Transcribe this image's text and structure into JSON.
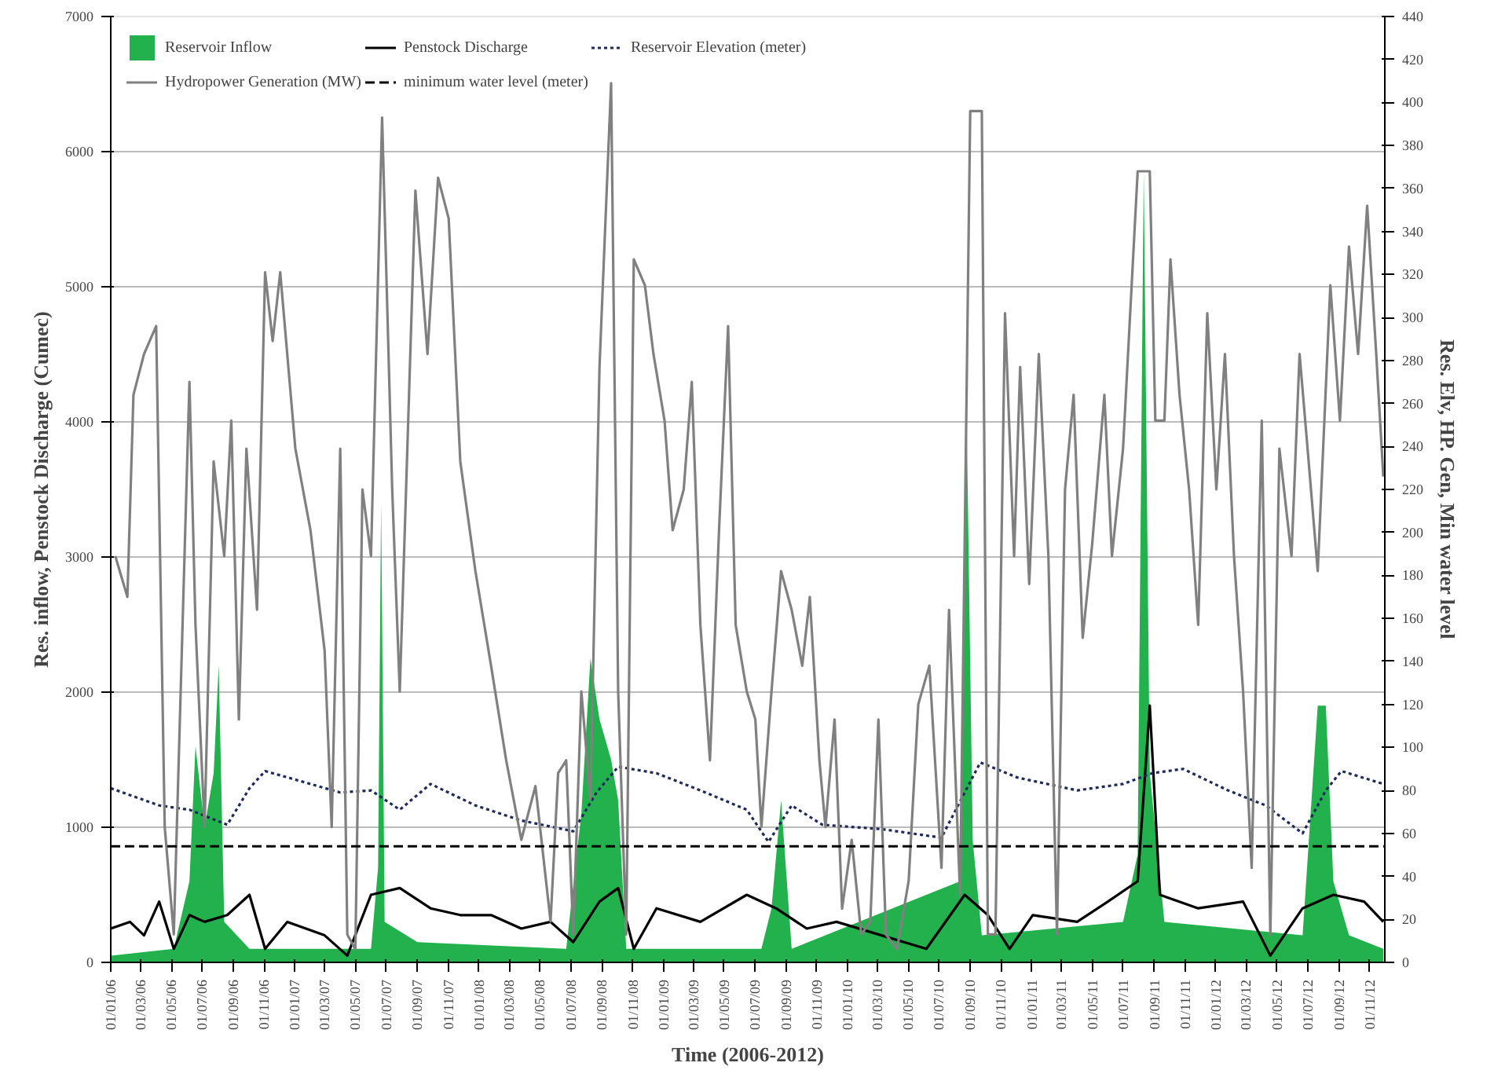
{
  "chart_data": {
    "type": "line",
    "xlabel": "Time (2006-2012)",
    "ylabel": "Res. inflow, Penstock Discharge (Cumec)",
    "y2label": "Res. Elv, HP. Gen, Min water level",
    "xlim": [
      "2006-01-01",
      "2012-12-01"
    ],
    "ylim": [
      0,
      7000
    ],
    "yticks": [
      0,
      1000,
      2000,
      3000,
      4000,
      5000,
      6000,
      7000
    ],
    "y2lim": [
      0,
      440
    ],
    "y2ticks": [
      0,
      20,
      40,
      60,
      80,
      100,
      120,
      140,
      160,
      180,
      200,
      220,
      240,
      260,
      280,
      300,
      320,
      340,
      360,
      380,
      400,
      420,
      440
    ],
    "xticks": [
      {
        "value": "2006-01-01",
        "label": "01/01/06"
      },
      {
        "value": "2006-03-01",
        "label": "01/03/06"
      },
      {
        "value": "2006-05-01",
        "label": "01/05/06"
      },
      {
        "value": "2006-07-01",
        "label": "01/07/06"
      },
      {
        "value": "2006-09-01",
        "label": "01/09/06"
      },
      {
        "value": "2006-11-01",
        "label": "01/11/06"
      },
      {
        "value": "2007-01-01",
        "label": "01/01/07"
      },
      {
        "value": "2007-03-01",
        "label": "01/03/07"
      },
      {
        "value": "2007-05-01",
        "label": "01/05/07"
      },
      {
        "value": "2007-07-01",
        "label": "01/07/07"
      },
      {
        "value": "2007-09-01",
        "label": "01/09/07"
      },
      {
        "value": "2007-11-01",
        "label": "01/11/07"
      },
      {
        "value": "2008-01-01",
        "label": "01/01/08"
      },
      {
        "value": "2008-03-01",
        "label": "01/03/08"
      },
      {
        "value": "2008-05-01",
        "label": "01/05/08"
      },
      {
        "value": "2008-07-01",
        "label": "01/07/08"
      },
      {
        "value": "2008-09-01",
        "label": "01/09/08"
      },
      {
        "value": "2008-11-01",
        "label": "01/11/08"
      },
      {
        "value": "2009-01-01",
        "label": "01/01/09"
      },
      {
        "value": "2009-03-01",
        "label": "01/03/09"
      },
      {
        "value": "2009-05-01",
        "label": "01/05/09"
      },
      {
        "value": "2009-07-01",
        "label": "01/07/09"
      },
      {
        "value": "2009-09-01",
        "label": "01/09/09"
      },
      {
        "value": "2009-11-01",
        "label": "01/11/09"
      },
      {
        "value": "2010-01-01",
        "label": "01/01/10"
      },
      {
        "value": "2010-03-01",
        "label": "01/03/10"
      },
      {
        "value": "2010-05-01",
        "label": "01/05/10"
      },
      {
        "value": "2010-07-01",
        "label": "01/07/10"
      },
      {
        "value": "2010-09-01",
        "label": "01/09/10"
      },
      {
        "value": "2010-11-01",
        "label": "01/11/10"
      },
      {
        "value": "2011-01-01",
        "label": "01/01/11"
      },
      {
        "value": "2011-03-01",
        "label": "01/03/11"
      },
      {
        "value": "2011-05-01",
        "label": "01/05/11"
      },
      {
        "value": "2011-07-01",
        "label": "01/07/11"
      },
      {
        "value": "2011-09-01",
        "label": "01/09/11"
      },
      {
        "value": "2011-11-01",
        "label": "01/11/11"
      },
      {
        "value": "2012-01-01",
        "label": "01/01/12"
      },
      {
        "value": "2012-03-01",
        "label": "01/03/12"
      },
      {
        "value": "2012-05-01",
        "label": "01/05/12"
      },
      {
        "value": "2012-07-01",
        "label": "01/07/12"
      },
      {
        "value": "2012-09-01",
        "label": "01/09/12"
      },
      {
        "value": "2012-11-01",
        "label": "01/11/12"
      }
    ],
    "grid": "y",
    "legend": "top left",
    "series": [
      {
        "name": "Reservoir Inflow",
        "type": "area",
        "color": "#22b14c",
        "x": [
          "2006-01-01",
          "2006-05-06",
          "2006-06-06",
          "2006-06-18",
          "2006-07-06",
          "2006-07-24",
          "2006-08-03",
          "2006-08-14",
          "2006-10-03",
          "2007-06-01",
          "2007-06-15",
          "2007-06-21",
          "2007-06-28",
          "2007-09-01",
          "2008-06-22",
          "2008-07-22",
          "2008-08-09",
          "2008-08-27",
          "2008-09-19",
          "2008-10-03",
          "2008-10-19",
          "2009-07-14",
          "2009-08-03",
          "2009-08-22",
          "2009-09-12",
          "2010-08-12",
          "2010-08-24",
          "2010-09-06",
          "2010-09-24",
          "2011-07-01",
          "2011-07-30",
          "2011-08-11",
          "2011-08-23",
          "2011-09-21",
          "2012-06-21",
          "2012-07-21",
          "2012-08-06",
          "2012-08-21",
          "2012-09-21",
          "2012-11-28"
        ],
        "values": [
          50,
          100,
          600,
          1600,
          1000,
          1400,
          2200,
          300,
          100,
          100,
          700,
          3400,
          300,
          150,
          100,
          1100,
          2250,
          1800,
          1500,
          1200,
          100,
          100,
          400,
          1200,
          100,
          600,
          4300,
          900,
          200,
          300,
          800,
          5850,
          1400,
          300,
          200,
          1900,
          1900,
          600,
          200,
          100
        ]
      },
      {
        "name": "Penstock Discharge",
        "color": "#000000",
        "line_style": "solid",
        "x": [
          "2006-01-01",
          "2006-02-08",
          "2006-03-08",
          "2006-04-07",
          "2006-05-06",
          "2006-06-06",
          "2006-07-06",
          "2006-08-20",
          "2006-10-03",
          "2006-11-03",
          "2006-12-17",
          "2007-03-01",
          "2007-04-15",
          "2007-06-01",
          "2007-07-28",
          "2007-09-27",
          "2007-11-25",
          "2008-01-25",
          "2008-03-25",
          "2008-05-22",
          "2008-07-06",
          "2008-08-27",
          "2008-10-03",
          "2008-11-03",
          "2008-12-18",
          "2009-03-15",
          "2009-06-15",
          "2009-08-12",
          "2009-10-12",
          "2009-12-10",
          "2010-03-09",
          "2010-06-06",
          "2010-08-21",
          "2010-10-06",
          "2010-11-18",
          "2011-01-03",
          "2011-04-01",
          "2011-06-01",
          "2011-07-30",
          "2011-08-23",
          "2011-09-12",
          "2011-11-27",
          "2012-02-24",
          "2012-04-18",
          "2012-06-21",
          "2012-08-21",
          "2012-10-21",
          "2012-11-28"
        ],
        "values": [
          250,
          300,
          200,
          450,
          100,
          350,
          300,
          350,
          500,
          100,
          300,
          200,
          50,
          500,
          550,
          400,
          350,
          350,
          250,
          300,
          150,
          450,
          550,
          100,
          400,
          300,
          500,
          400,
          250,
          300,
          200,
          100,
          500,
          350,
          100,
          350,
          300,
          450,
          600,
          1900,
          500,
          400,
          450,
          50,
          400,
          500,
          450,
          300
        ]
      },
      {
        "name": "Reservoir Elevation (meter)",
        "axis": "y2",
        "color": "#1f2a5a",
        "line_style": "dotted",
        "x": [
          "2006-01-01",
          "2006-04-07",
          "2006-06-06",
          "2006-08-20",
          "2006-10-03",
          "2006-11-03",
          "2007-01-02",
          "2007-04-01",
          "2007-06-01",
          "2007-07-28",
          "2007-09-27",
          "2007-12-25",
          "2008-03-25",
          "2008-07-06",
          "2008-08-21",
          "2008-10-03",
          "2008-12-18",
          "2009-03-15",
          "2009-06-15",
          "2009-07-28",
          "2009-09-12",
          "2009-11-12",
          "2010-03-09",
          "2010-07-06",
          "2010-08-21",
          "2010-09-21",
          "2010-12-03",
          "2011-04-01",
          "2011-07-01",
          "2011-08-28",
          "2011-10-28",
          "2012-01-25",
          "2012-04-09",
          "2012-06-21",
          "2012-08-06",
          "2012-09-06",
          "2012-11-28"
        ],
        "values": [
          81,
          73,
          71,
          64,
          81,
          89,
          85,
          79,
          80,
          71,
          83,
          73,
          66,
          61,
          79,
          91,
          88,
          80,
          71,
          56,
          73,
          64,
          62,
          58,
          79,
          93,
          86,
          80,
          83,
          88,
          90,
          80,
          73,
          60,
          80,
          89,
          83
        ]
      },
      {
        "name": "Hydropower Generation (MW)",
        "axis": "y2",
        "color": "#808080",
        "line_style": "solid",
        "x": [
          "2006-01-10",
          "2006-02-03",
          "2006-02-15",
          "2006-03-08",
          "2006-04-01",
          "2006-04-18",
          "2006-05-06",
          "2006-06-06",
          "2006-06-18",
          "2006-07-06",
          "2006-07-24",
          "2006-08-14",
          "2006-08-28",
          "2006-09-12",
          "2006-09-27",
          "2006-10-18",
          "2006-11-03",
          "2006-11-18",
          "2006-12-03",
          "2007-01-02",
          "2007-02-01",
          "2007-03-01",
          "2007-03-15",
          "2007-04-01",
          "2007-04-15",
          "2007-05-01",
          "2007-05-15",
          "2007-06-01",
          "2007-06-23",
          "2007-07-13",
          "2007-07-28",
          "2007-08-28",
          "2007-09-21",
          "2007-10-12",
          "2007-11-02",
          "2007-11-25",
          "2007-12-25",
          "2008-01-25",
          "2008-02-24",
          "2008-03-25",
          "2008-04-22",
          "2008-05-22",
          "2008-06-06",
          "2008-06-22",
          "2008-07-06",
          "2008-07-22",
          "2008-08-09",
          "2008-08-27",
          "2008-09-19",
          "2008-10-03",
          "2008-10-19",
          "2008-11-03",
          "2008-11-25",
          "2008-12-12",
          "2009-01-03",
          "2009-01-19",
          "2009-02-10",
          "2009-02-26",
          "2009-03-15",
          "2009-04-03",
          "2009-04-21",
          "2009-05-09",
          "2009-05-24",
          "2009-06-15",
          "2009-07-02",
          "2009-07-14",
          "2009-08-03",
          "2009-08-22",
          "2009-09-12",
          "2009-10-03",
          "2009-10-18",
          "2009-11-06",
          "2009-11-18",
          "2009-12-06",
          "2009-12-21",
          "2010-01-09",
          "2010-01-28",
          "2010-02-15",
          "2010-03-03",
          "2010-03-18",
          "2010-04-09",
          "2010-05-02",
          "2010-05-21",
          "2010-06-12",
          "2010-07-06",
          "2010-07-21",
          "2010-08-12",
          "2010-09-01",
          "2010-09-24",
          "2010-10-06",
          "2010-10-21",
          "2010-11-09",
          "2010-11-27",
          "2010-12-09",
          "2010-12-27",
          "2011-01-15",
          "2011-02-03",
          "2011-02-20",
          "2011-03-08",
          "2011-03-25",
          "2011-04-12",
          "2011-05-01",
          "2011-05-25",
          "2011-06-09",
          "2011-07-01",
          "2011-07-30",
          "2011-08-23",
          "2011-09-03",
          "2011-09-21",
          "2011-10-03",
          "2011-10-21",
          "2011-11-09",
          "2011-11-27",
          "2011-12-15",
          "2012-01-02",
          "2012-01-19",
          "2012-02-06",
          "2012-02-24",
          "2012-03-12",
          "2012-04-01",
          "2012-04-18",
          "2012-05-06",
          "2012-05-30",
          "2012-06-15",
          "2012-07-03",
          "2012-07-21",
          "2012-08-15",
          "2012-09-03",
          "2012-09-21",
          "2012-10-09",
          "2012-10-27",
          "2012-11-14",
          "2012-11-28"
        ],
        "values": [
          189,
          170,
          264,
          283,
          296,
          63,
          13,
          270,
          157,
          63,
          233,
          189,
          252,
          113,
          239,
          164,
          321,
          289,
          321,
          239,
          201,
          145,
          63,
          239,
          13,
          6,
          220,
          189,
          393,
          220,
          126,
          359,
          283,
          365,
          346,
          233,
          182,
          138,
          94,
          57,
          82,
          19,
          88,
          94,
          13,
          126,
          76,
          277,
          409,
          126,
          13,
          327,
          315,
          283,
          252,
          201,
          220,
          270,
          157,
          94,
          201,
          296,
          157,
          126,
          113,
          63,
          126,
          182,
          164,
          138,
          170,
          94,
          63,
          113,
          25,
          57,
          13,
          19,
          113,
          13,
          6,
          38,
          120,
          138,
          44,
          164,
          31,
          396,
          396,
          13,
          13,
          302,
          189,
          277,
          176,
          283,
          189,
          13,
          220,
          264,
          151,
          195,
          264,
          189,
          239,
          368,
          368,
          252,
          252,
          327,
          264,
          220,
          157,
          302,
          220,
          283,
          189,
          126,
          44,
          252,
          13,
          239,
          189,
          283,
          233,
          182,
          315,
          252,
          333,
          283,
          352,
          283,
          226
        ]
      },
      {
        "name": "minimum water level (meter)",
        "axis": "y2",
        "color": "#000000",
        "line_style": "dashed",
        "x": [
          "2006-01-01",
          "2012-12-01"
        ],
        "values": [
          54,
          54
        ]
      }
    ]
  }
}
